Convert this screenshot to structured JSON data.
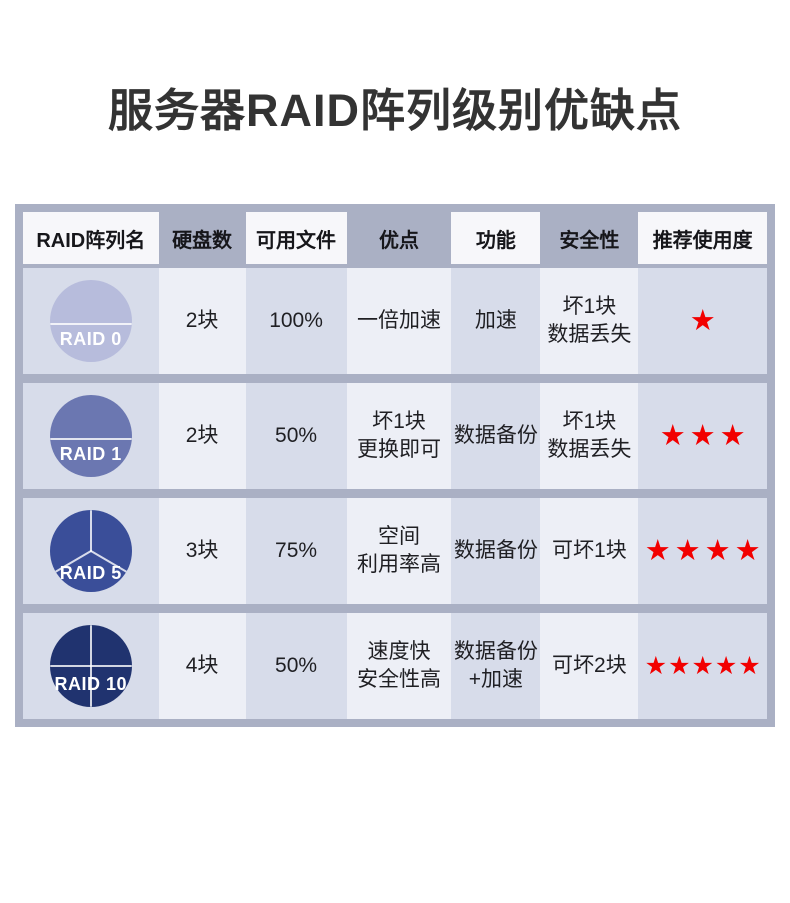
{
  "page": {
    "title": "服务器RAID阵列级别优缺点"
  },
  "colors": {
    "frame": "#aab0c4",
    "header_cell": "#f7f7fa",
    "cell_dark": "#d7dcea",
    "cell_light": "#edeff6",
    "star": "#f20000",
    "title_text": "#333333"
  },
  "chart_data": {
    "type": "table",
    "title": "服务器RAID阵列级别优缺点",
    "columns": [
      "RAID阵列名",
      "硬盘数",
      "可用文件",
      "优点",
      "功能",
      "安全性",
      "推荐使用度"
    ],
    "rows": [
      {
        "raid": "RAID 0",
        "disk_split": "half",
        "disk_color": "#b7bcdc",
        "disks": "2块",
        "usable": "100%",
        "advantage": [
          "一倍加速"
        ],
        "function": [
          "加速"
        ],
        "safety": [
          "坏1块",
          "数据丢失"
        ],
        "rating_stars": 1
      },
      {
        "raid": "RAID 1",
        "disk_split": "half",
        "disk_color": "#6b77b1",
        "disks": "2块",
        "usable": "50%",
        "advantage": [
          "坏1块",
          "更换即可"
        ],
        "function": [
          "数据备份"
        ],
        "safety": [
          "坏1块",
          "数据丢失"
        ],
        "rating_stars": 3
      },
      {
        "raid": "RAID 5",
        "disk_split": "thirds",
        "disk_color": "#3a4e99",
        "disks": "3块",
        "usable": "75%",
        "advantage": [
          "空间",
          "利用率高"
        ],
        "function": [
          "数据备份"
        ],
        "safety": [
          "可坏1块"
        ],
        "rating_stars": 4
      },
      {
        "raid": "RAID 10",
        "disk_split": "quarters",
        "disk_color": "#20336f",
        "disks": "4块",
        "usable": "50%",
        "advantage": [
          "速度快",
          "安全性高"
        ],
        "function": [
          "数据备份",
          "+加速"
        ],
        "safety": [
          "可坏2块"
        ],
        "rating_stars": 5
      }
    ]
  }
}
